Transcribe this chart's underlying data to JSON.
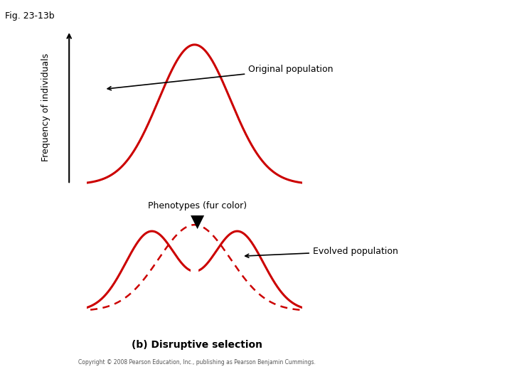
{
  "fig_label": "Fig. 23-13b",
  "bg_color": "#b8b49a",
  "panel1": {
    "ylabel": "Frequency of individuals",
    "xlabel": "Phenotypes (fur color)",
    "annotation": "Original population",
    "curve_color": "#cc0000",
    "curve_mean": 0.0,
    "curve_std": 0.25,
    "xlim": [
      -0.75,
      0.75
    ],
    "ylim": [
      0,
      1.1
    ]
  },
  "panel2": {
    "annotation": "Evolved population",
    "curve_color": "#cc0000",
    "dashed_color": "#cc0000",
    "peak1_mean": -0.3,
    "peak2_mean": 0.3,
    "peak_std": 0.18,
    "orig_mean": 0.0,
    "orig_std": 0.25,
    "xlim": [
      -0.75,
      0.75
    ],
    "ylim": [
      0,
      1.1
    ]
  },
  "arrow_color": "#333333",
  "title_fontsize": 9,
  "label_fontsize": 9,
  "bottom_label": "(b) Disruptive selection",
  "copyright": "Copyright © 2008 Pearson Education, Inc., publishing as Pearson Benjamin Cummings.",
  "white_arrow_color": "#ffffff"
}
